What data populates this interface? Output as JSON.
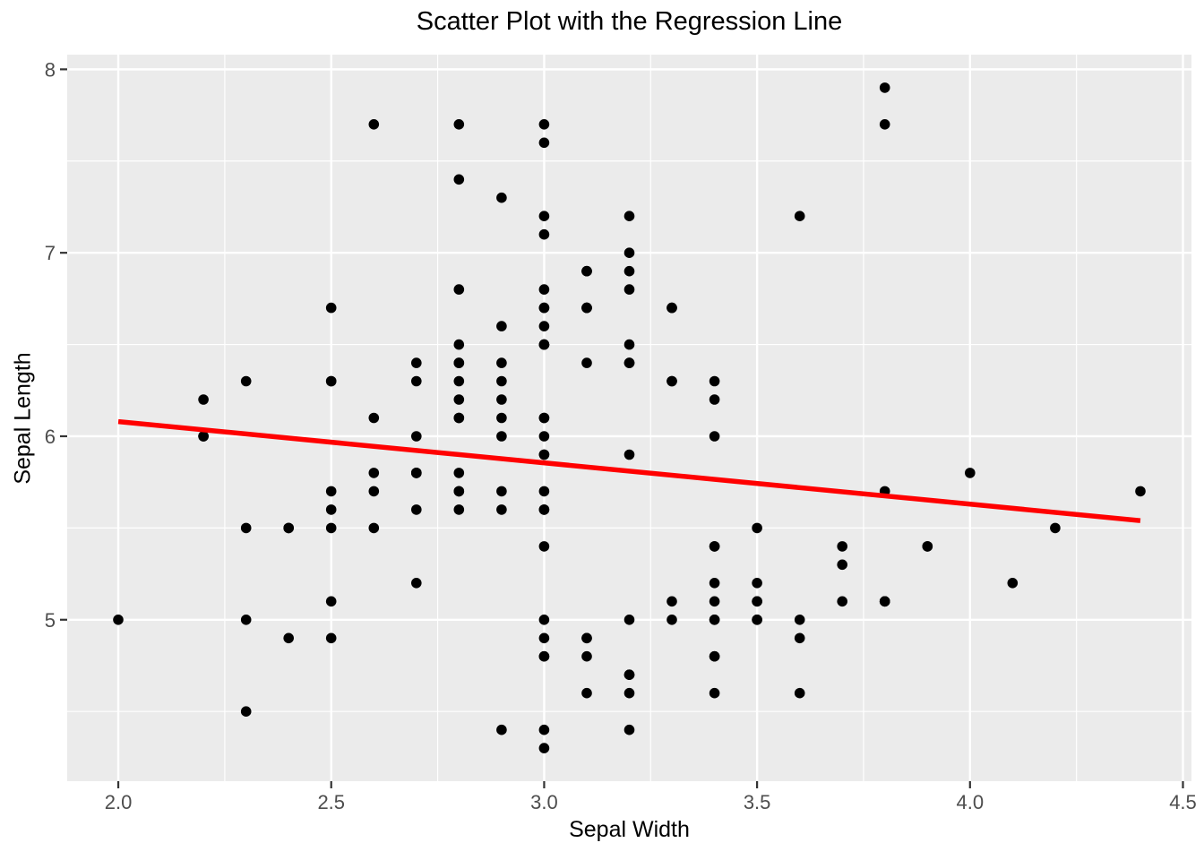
{
  "chart_data": {
    "type": "scatter",
    "title": "Scatter Plot with the Regression Line",
    "xlabel": "Sepal Width",
    "ylabel": "Sepal Length",
    "xlim": [
      1.88,
      4.52
    ],
    "ylim": [
      4.12,
      8.08
    ],
    "x_ticks": {
      "values": [
        2.0,
        2.5,
        3.0,
        3.5,
        4.0,
        4.5
      ],
      "labels": [
        "2.0",
        "2.5",
        "3.0",
        "3.5",
        "4.0",
        "4.5"
      ]
    },
    "y_ticks": {
      "values": [
        5,
        6,
        7,
        8
      ],
      "labels": [
        "5",
        "6",
        "7",
        "8"
      ]
    },
    "x_minor_gridlines": [
      2.25,
      2.75,
      3.25,
      3.75,
      4.25
    ],
    "y_minor_gridlines": [
      4.5,
      5.5,
      6.5,
      7.5
    ],
    "grid": true,
    "legend_position": "none",
    "points": [
      [
        3.5,
        5.1
      ],
      [
        3.0,
        4.9
      ],
      [
        3.2,
        4.7
      ],
      [
        3.1,
        4.6
      ],
      [
        3.6,
        5.0
      ],
      [
        3.9,
        5.4
      ],
      [
        3.4,
        4.6
      ],
      [
        3.4,
        5.0
      ],
      [
        2.9,
        4.4
      ],
      [
        3.1,
        4.9
      ],
      [
        3.7,
        5.4
      ],
      [
        3.4,
        4.8
      ],
      [
        3.0,
        4.8
      ],
      [
        3.0,
        4.3
      ],
      [
        4.0,
        5.8
      ],
      [
        4.4,
        5.7
      ],
      [
        3.9,
        5.4
      ],
      [
        3.5,
        5.1
      ],
      [
        3.8,
        5.7
      ],
      [
        3.8,
        5.1
      ],
      [
        3.4,
        5.4
      ],
      [
        3.7,
        5.1
      ],
      [
        3.6,
        4.6
      ],
      [
        3.3,
        5.1
      ],
      [
        3.4,
        4.8
      ],
      [
        3.0,
        5.0
      ],
      [
        3.4,
        5.0
      ],
      [
        3.5,
        5.2
      ],
      [
        3.4,
        5.2
      ],
      [
        3.2,
        4.7
      ],
      [
        3.1,
        4.8
      ],
      [
        3.4,
        5.4
      ],
      [
        4.1,
        5.2
      ],
      [
        4.2,
        5.5
      ],
      [
        3.1,
        4.9
      ],
      [
        3.2,
        5.0
      ],
      [
        3.5,
        5.5
      ],
      [
        3.6,
        4.9
      ],
      [
        3.0,
        4.4
      ],
      [
        3.4,
        5.1
      ],
      [
        3.5,
        5.0
      ],
      [
        2.3,
        4.5
      ],
      [
        3.2,
        4.4
      ],
      [
        3.5,
        5.0
      ],
      [
        3.8,
        5.1
      ],
      [
        3.0,
        4.8
      ],
      [
        3.8,
        5.1
      ],
      [
        3.2,
        4.6
      ],
      [
        3.7,
        5.3
      ],
      [
        3.3,
        5.0
      ],
      [
        3.2,
        7.0
      ],
      [
        3.2,
        6.4
      ],
      [
        3.1,
        6.9
      ],
      [
        2.3,
        5.5
      ],
      [
        2.8,
        6.5
      ],
      [
        2.8,
        5.7
      ],
      [
        3.3,
        6.3
      ],
      [
        2.4,
        4.9
      ],
      [
        2.9,
        6.6
      ],
      [
        2.7,
        5.2
      ],
      [
        2.0,
        5.0
      ],
      [
        3.0,
        5.9
      ],
      [
        2.2,
        6.0
      ],
      [
        2.9,
        6.1
      ],
      [
        2.9,
        5.6
      ],
      [
        3.1,
        6.7
      ],
      [
        3.0,
        5.6
      ],
      [
        2.7,
        5.8
      ],
      [
        2.2,
        6.2
      ],
      [
        2.5,
        5.6
      ],
      [
        3.2,
        5.9
      ],
      [
        2.8,
        6.1
      ],
      [
        2.5,
        6.3
      ],
      [
        2.8,
        6.1
      ],
      [
        2.9,
        6.4
      ],
      [
        3.0,
        6.6
      ],
      [
        2.8,
        6.8
      ],
      [
        3.0,
        6.7
      ],
      [
        2.9,
        6.0
      ],
      [
        2.6,
        5.7
      ],
      [
        2.4,
        5.5
      ],
      [
        2.4,
        5.5
      ],
      [
        2.7,
        5.8
      ],
      [
        2.7,
        6.0
      ],
      [
        3.0,
        5.4
      ],
      [
        3.4,
        6.0
      ],
      [
        3.1,
        6.7
      ],
      [
        2.3,
        6.3
      ],
      [
        3.0,
        5.6
      ],
      [
        2.5,
        5.5
      ],
      [
        2.6,
        5.5
      ],
      [
        3.0,
        6.1
      ],
      [
        2.6,
        5.8
      ],
      [
        2.3,
        5.0
      ],
      [
        2.7,
        5.6
      ],
      [
        3.0,
        5.7
      ],
      [
        2.9,
        5.7
      ],
      [
        2.9,
        6.2
      ],
      [
        2.5,
        5.1
      ],
      [
        2.8,
        5.7
      ],
      [
        3.3,
        6.3
      ],
      [
        2.7,
        5.8
      ],
      [
        3.0,
        7.1
      ],
      [
        2.9,
        6.3
      ],
      [
        3.0,
        6.5
      ],
      [
        3.0,
        7.6
      ],
      [
        2.5,
        4.9
      ],
      [
        2.9,
        7.3
      ],
      [
        2.5,
        6.7
      ],
      [
        3.6,
        7.2
      ],
      [
        3.2,
        6.5
      ],
      [
        2.7,
        6.4
      ],
      [
        3.0,
        6.8
      ],
      [
        2.5,
        5.7
      ],
      [
        2.8,
        5.8
      ],
      [
        3.2,
        6.4
      ],
      [
        3.0,
        6.5
      ],
      [
        3.8,
        7.7
      ],
      [
        2.6,
        7.7
      ],
      [
        2.2,
        6.0
      ],
      [
        3.2,
        6.9
      ],
      [
        2.8,
        5.6
      ],
      [
        2.8,
        7.7
      ],
      [
        2.7,
        6.3
      ],
      [
        3.3,
        6.7
      ],
      [
        3.2,
        7.2
      ],
      [
        2.8,
        6.2
      ],
      [
        3.0,
        6.1
      ],
      [
        2.8,
        6.4
      ],
      [
        3.0,
        7.2
      ],
      [
        2.8,
        7.4
      ],
      [
        3.8,
        7.9
      ],
      [
        2.8,
        6.4
      ],
      [
        2.8,
        6.3
      ],
      [
        2.6,
        6.1
      ],
      [
        3.0,
        7.7
      ],
      [
        3.4,
        6.3
      ],
      [
        3.1,
        6.4
      ],
      [
        3.0,
        6.0
      ],
      [
        3.1,
        6.9
      ],
      [
        3.1,
        6.7
      ],
      [
        3.1,
        6.9
      ],
      [
        2.7,
        5.8
      ],
      [
        3.2,
        6.8
      ],
      [
        3.3,
        6.7
      ],
      [
        3.0,
        6.7
      ],
      [
        2.5,
        6.3
      ],
      [
        3.0,
        6.5
      ],
      [
        3.4,
        6.2
      ],
      [
        3.0,
        5.9
      ]
    ],
    "regression_line": {
      "x": [
        2.0,
        4.4
      ],
      "y": [
        6.08,
        5.54
      ]
    },
    "colors": {
      "point": "#000000",
      "line": "#FF0000",
      "panel_bg": "#EBEBEB",
      "grid": "#FFFFFF",
      "tick_text": "#4D4D4D",
      "tick_mark": "#333333",
      "title_text": "#000000",
      "outer_bg": "#FFFFFF"
    }
  }
}
